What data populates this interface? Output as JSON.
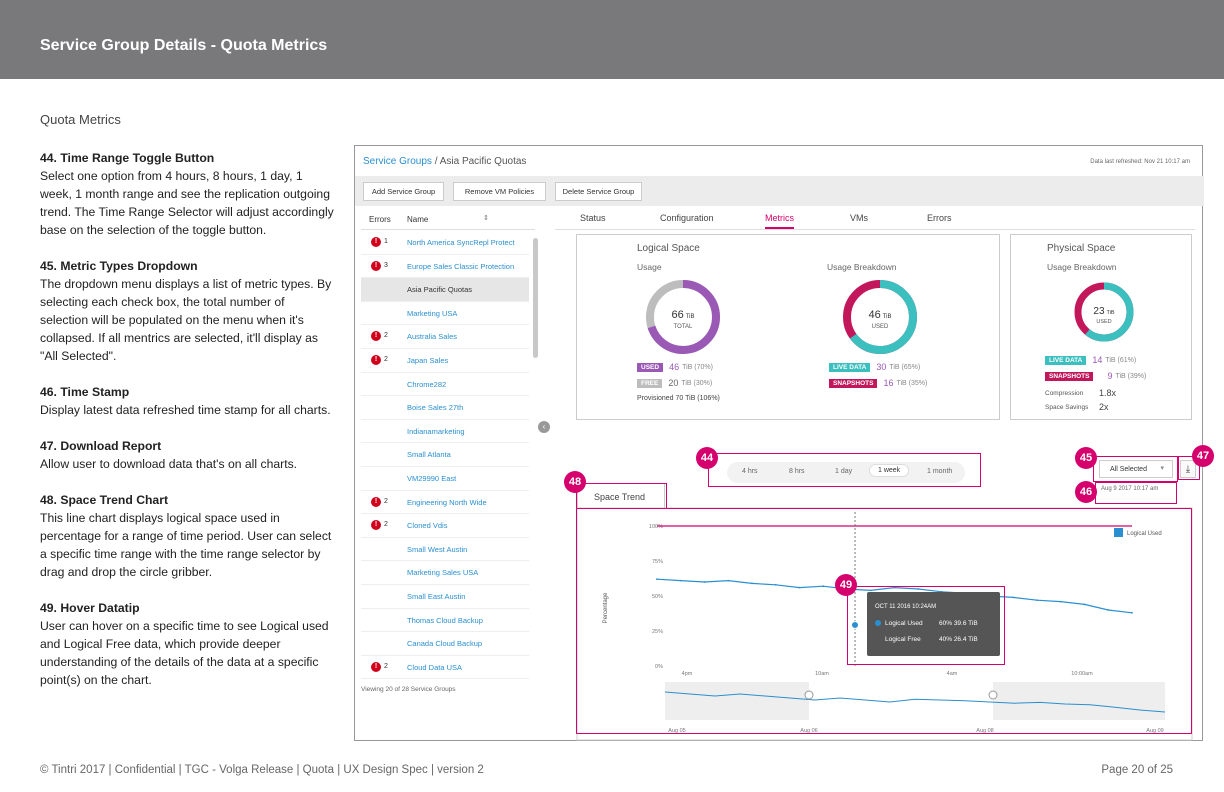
{
  "header": {
    "title": "Service Group Details - Quota Metrics"
  },
  "section_title": "Quota Metrics",
  "notes": [
    {
      "title": "44. Time Range Toggle Button",
      "body": "Select one option from 4 hours, 8 hours, 1 day, 1 week, 1 month range and see the replication outgoing trend. The Time Range Selector will adjust accordingly base on the selection of the toggle button."
    },
    {
      "title": "45. Metric Types Dropdown",
      "body": "The dropdown menu displays a list of metric types. By selecting each check box, the total number of selection will be populated on the menu when it's collapsed. If all mentrics are selected, it'll display as \"All Selected\"."
    },
    {
      "title": "46. Time Stamp",
      "body": "Display latest data refreshed time stamp for all charts."
    },
    {
      "title": "47. Download Report",
      "body": "Allow user to download data that's on all charts."
    },
    {
      "title": "48. Space Trend Chart",
      "body": "This line chart displays logical space used in percentage for a range of time period. User can select a specific time range with the time range selector by drag and drop the circle gribber."
    },
    {
      "title": "49. Hover Datatip",
      "body": "User can hover on a specific time to see Logical used and Logical Free data, which provide deeper understanding of the details of the data at a specific point(s) on the chart."
    }
  ],
  "footer": {
    "left": "© Tintri 2017  | Confidential |  TGC - Volga Release  |  Quota  |  UX Design Spec  |  version 2",
    "page": "Page 20 of 25"
  },
  "app": {
    "breadcrumb": {
      "link": "Service Groups",
      "sep": " / ",
      "current": "Asia Pacific Quotas"
    },
    "refresh": "Data last refreshed: Nov 21 10:17 am",
    "actions": {
      "add": "Add Service Group",
      "remove": "Remove VM Policies",
      "delete": "Delete Service Group"
    },
    "list": {
      "col_errors": "Errors",
      "col_name": "Name",
      "sort_icon": "⇕",
      "rows": [
        {
          "err": "1",
          "name": "North America SyncRepl Protect"
        },
        {
          "err": "3",
          "name": "Europe Sales Classic Protection"
        },
        {
          "err": "",
          "name": "Asia Pacific Quotas"
        },
        {
          "err": "",
          "name": "Marketing USA"
        },
        {
          "err": "2",
          "name": "Australia Sales"
        },
        {
          "err": "2",
          "name": "Japan Sales"
        },
        {
          "err": "",
          "name": "Chrome282"
        },
        {
          "err": "",
          "name": "Boise Sales 27th"
        },
        {
          "err": "",
          "name": "Indianamarketing"
        },
        {
          "err": "",
          "name": "Small Atlanta"
        },
        {
          "err": "",
          "name": "VM29990 East"
        },
        {
          "err": "2",
          "name": "Engineering North Wide"
        },
        {
          "err": "2",
          "name": "Cloned Vdis"
        },
        {
          "err": "",
          "name": "Small West Austin"
        },
        {
          "err": "",
          "name": "Marketing Sales USA"
        },
        {
          "err": "",
          "name": "Small East Austin"
        },
        {
          "err": "",
          "name": "Thomas Cloud Backup"
        },
        {
          "err": "",
          "name": "Canada Cloud Backup"
        },
        {
          "err": "2",
          "name": "Cloud Data USA"
        }
      ],
      "viewing": "Viewing 20 of 28 Service Groups"
    },
    "tabs": [
      "Status",
      "Configuration",
      "Metrics",
      "VMs",
      "Errors"
    ],
    "active_tab": "Metrics",
    "logical": {
      "title": "Logical Space",
      "usage_label": "Usage",
      "breakdown_label": "Usage Breakdown",
      "usage_value": "66",
      "usage_unit": "TiB",
      "usage_caption": "TOTAL",
      "used_pct": 0.7,
      "breakdown_value": "46",
      "breakdown_unit": "TiB",
      "breakdown_caption": "USED",
      "live_pct": 0.65,
      "used_chip": "USED",
      "used_val": "46",
      "used_detail": "TiB (70%)",
      "free_chip": "FREE",
      "free_val": "20",
      "free_detail": "TiB (30%)",
      "provisioned": "Provisioned  70 TiB (106%)",
      "live_chip": "LIVE DATA",
      "live_val": "30",
      "live_detail": "TiB (65%)",
      "snap_chip": "SNAPSHOTS",
      "snap_val": "16",
      "snap_detail": "TiB (35%)"
    },
    "physical": {
      "title": "Physical Space",
      "breakdown_label": "Usage Breakdown",
      "value": "23",
      "unit": "TiB",
      "caption": "USED",
      "live_pct": 0.61,
      "live_chip": "LIVE DATA",
      "live_val": "14",
      "live_detail": "TiB (61%)",
      "snap_chip": "SNAPSHOTS",
      "snap_val": "9",
      "snap_detail": "TiB (39%)",
      "compression_label": "Compression",
      "compression_val": "1.8x",
      "savings_label": "Space Savings",
      "savings_val": "2x"
    },
    "colors": {
      "used": "#9b59b6",
      "free": "#bdbdbd",
      "live": "#3bbfbf",
      "snap": "#c2185b",
      "annot": "#d5006d",
      "line": "#2a8fd0"
    },
    "time_range": {
      "options": [
        "4 hrs",
        "8 hrs",
        "1 day",
        "1 week",
        "1 month"
      ],
      "selected": "1 week"
    },
    "metric_dropdown": "All Selected",
    "dropdown_icon": "▾",
    "download_icon": "⤓",
    "timestamp": "Aug 9 2017 10:17 am",
    "trend": {
      "tab": "Space Trend",
      "legend": "Logical Used",
      "ylabel": "Percentage",
      "y_ticks": [
        "100%",
        "75%",
        "50%",
        "25%",
        "0%"
      ],
      "x_ticks": [
        "4pm",
        "10am",
        "4am",
        "10:00am"
      ],
      "brush_ticks": [
        "Aug 05",
        "Aug 06",
        "Aug 08",
        "Aug 09"
      ],
      "tooltip": {
        "title": "OCT 11  2016  10:24AM",
        "used_label": "Logical Used",
        "used_val": "60%  39.6 TiB",
        "free_label": "Logical Free",
        "free_val": "40%  26.4 TiB"
      }
    },
    "badges": {
      "b44": "44",
      "b45": "45",
      "b46": "46",
      "b47": "47",
      "b48": "48",
      "b49": "49"
    }
  },
  "chart_data": {
    "type": "line",
    "title": "Space Trend",
    "xlabel": "",
    "ylabel": "Percentage",
    "ylim": [
      0,
      100
    ],
    "x": [
      0,
      1,
      2,
      3,
      4,
      5,
      6,
      7,
      8,
      9,
      10,
      11,
      12,
      13,
      14,
      15,
      16,
      17,
      18,
      19,
      20
    ],
    "x_tick_labels": [
      "4pm",
      "10am",
      "4am",
      "10:00am"
    ],
    "series": [
      {
        "name": "Logical Used",
        "values": [
          62,
          61,
          60,
          61,
          59,
          58,
          56,
          57,
          55,
          54,
          56,
          55,
          53,
          52,
          50,
          49,
          47,
          46,
          44,
          40,
          38
        ]
      }
    ],
    "brush_series": [
      6,
      5.5,
      5,
      5.5,
      5,
      4.5,
      4,
      4.5,
      4,
      3.5,
      4.2,
      4,
      3.8,
      3.5,
      3.2,
      3.4,
      3,
      2.8,
      2.2,
      1.5,
      1
    ],
    "legend": "top-right",
    "grid": false
  }
}
